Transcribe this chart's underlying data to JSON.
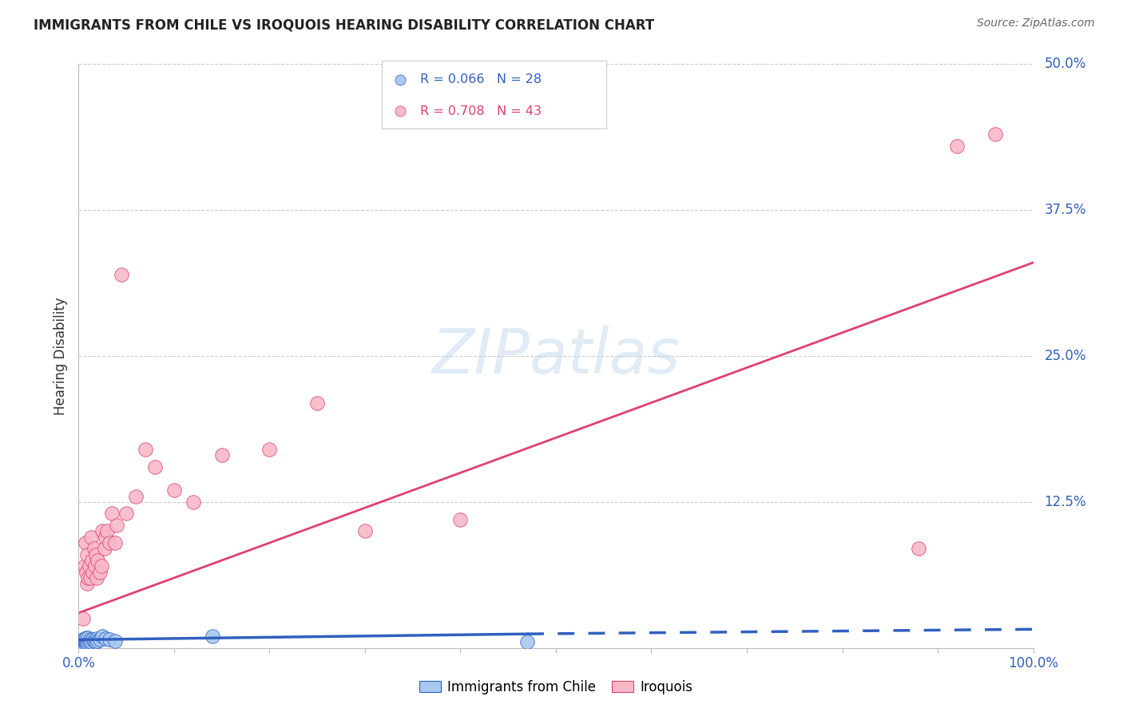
{
  "title": "IMMIGRANTS FROM CHILE VS IROQUOIS HEARING DISABILITY CORRELATION CHART",
  "source": "Source: ZipAtlas.com",
  "ylabel": "Hearing Disability",
  "xlim": [
    0,
    1.0
  ],
  "ylim": [
    0,
    0.5
  ],
  "yticks": [
    0.0,
    0.125,
    0.25,
    0.375,
    0.5
  ],
  "ytick_labels": [
    "",
    "12.5%",
    "25.0%",
    "37.5%",
    "50.0%"
  ],
  "background_color": "#ffffff",
  "blue_color": "#a8c8f0",
  "pink_color": "#f8b8c8",
  "blue_line_color": "#3060c0",
  "pink_line_color": "#e04070",
  "blue_scatter_x": [
    0.003,
    0.004,
    0.005,
    0.005,
    0.006,
    0.006,
    0.007,
    0.007,
    0.008,
    0.008,
    0.009,
    0.01,
    0.01,
    0.011,
    0.012,
    0.013,
    0.015,
    0.016,
    0.018,
    0.019,
    0.02,
    0.022,
    0.025,
    0.028,
    0.032,
    0.038,
    0.14,
    0.47
  ],
  "blue_scatter_y": [
    0.004,
    0.003,
    0.006,
    0.007,
    0.005,
    0.008,
    0.004,
    0.006,
    0.005,
    0.009,
    0.004,
    0.005,
    0.009,
    0.006,
    0.007,
    0.005,
    0.007,
    0.006,
    0.005,
    0.008,
    0.006,
    0.007,
    0.01,
    0.008,
    0.007,
    0.006,
    0.01,
    0.005
  ],
  "pink_scatter_x": [
    0.003,
    0.005,
    0.006,
    0.007,
    0.008,
    0.009,
    0.009,
    0.01,
    0.011,
    0.012,
    0.013,
    0.014,
    0.015,
    0.016,
    0.017,
    0.018,
    0.019,
    0.02,
    0.022,
    0.024,
    0.025,
    0.027,
    0.028,
    0.03,
    0.032,
    0.035,
    0.038,
    0.04,
    0.045,
    0.05,
    0.06,
    0.07,
    0.08,
    0.1,
    0.12,
    0.15,
    0.2,
    0.25,
    0.3,
    0.4,
    0.88,
    0.92,
    0.96
  ],
  "pink_scatter_y": [
    0.005,
    0.025,
    0.07,
    0.09,
    0.065,
    0.055,
    0.08,
    0.06,
    0.07,
    0.06,
    0.095,
    0.075,
    0.065,
    0.085,
    0.07,
    0.08,
    0.06,
    0.075,
    0.065,
    0.07,
    0.1,
    0.085,
    0.095,
    0.1,
    0.09,
    0.115,
    0.09,
    0.105,
    0.32,
    0.115,
    0.13,
    0.17,
    0.155,
    0.135,
    0.125,
    0.165,
    0.17,
    0.21,
    0.1,
    0.11,
    0.085,
    0.43,
    0.44
  ],
  "pink_line_x0": 0.0,
  "pink_line_y0": 0.03,
  "pink_line_x1": 1.0,
  "pink_line_y1": 0.33,
  "blue_line_solid_x0": 0.0,
  "blue_line_solid_y0": 0.007,
  "blue_line_solid_x1": 0.47,
  "blue_line_solid_y1": 0.012,
  "blue_line_dash_x0": 0.47,
  "blue_line_dash_y0": 0.012,
  "blue_line_dash_x1": 1.0,
  "blue_line_dash_y1": 0.016,
  "grid_color": "#cccccc",
  "legend_r_blue": "R = 0.066",
  "legend_n_blue": "N = 28",
  "legend_r_pink": "R = 0.708",
  "legend_n_pink": "N = 43"
}
